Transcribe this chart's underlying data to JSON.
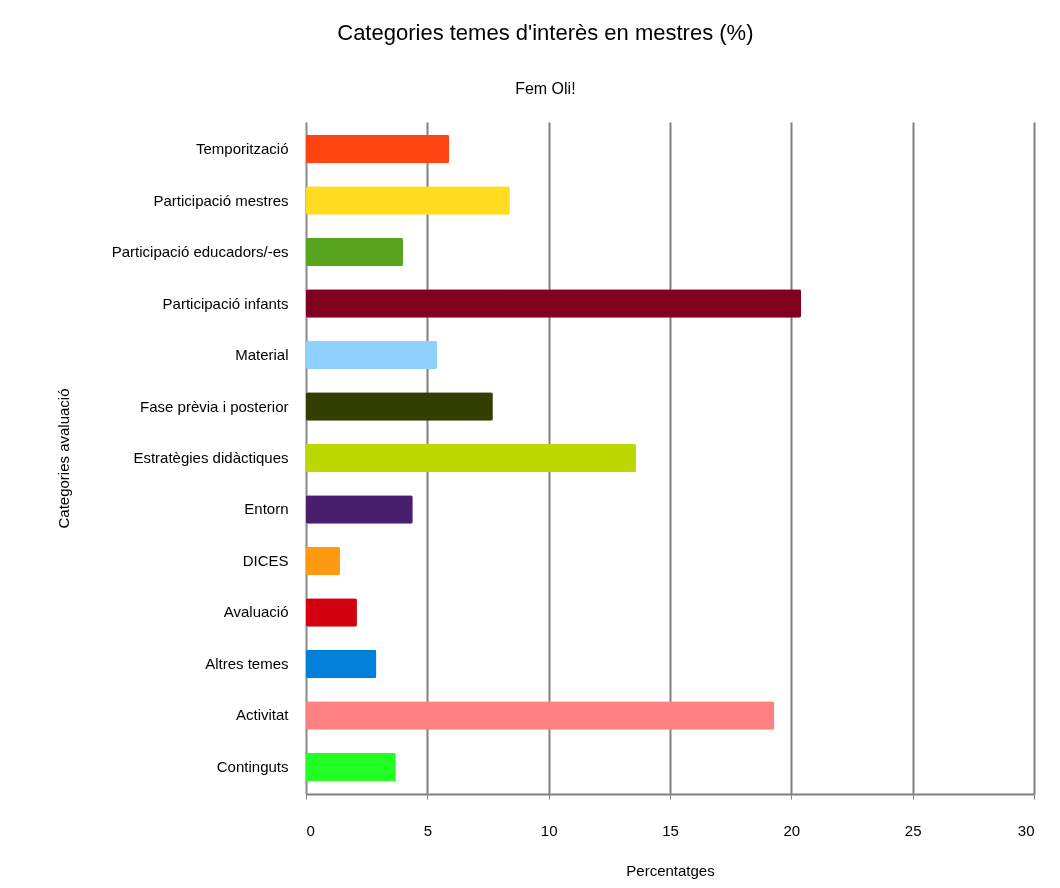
{
  "chart_data": {
    "type": "bar",
    "orientation": "horizontal",
    "title": "Categories temes d'interès en mestres (%)",
    "subtitle": "Fem Oli!",
    "xlabel": "Percentatges",
    "ylabel": "Categories avaluació",
    "categories": [
      "Temporització",
      "Participació mestres",
      "Participació educadors/-es",
      "Participació infants",
      "Material",
      "Fase prèvia i posterior",
      "Estratègies didàctiques",
      "Entorn",
      "DICES",
      "Avaluació",
      "Altres temes",
      "Activitat",
      "Continguts"
    ],
    "values": [
      5.9,
      8.4,
      4.0,
      20.4,
      5.4,
      7.7,
      13.6,
      4.4,
      1.4,
      2.1,
      2.9,
      19.3,
      3.7
    ],
    "colors": [
      "#ff4511",
      "#ffdc1f",
      "#5aa520",
      "#800020",
      "#8ed1ff",
      "#333f00",
      "#bbd900",
      "#4b1f6f",
      "#ff9a10",
      "#d20010",
      "#0080d8",
      "#ff8080",
      "#22ff22"
    ],
    "xlim": [
      0,
      30
    ],
    "xticks": [
      0,
      5,
      10,
      15,
      20,
      25,
      30
    ],
    "grid": "x"
  }
}
